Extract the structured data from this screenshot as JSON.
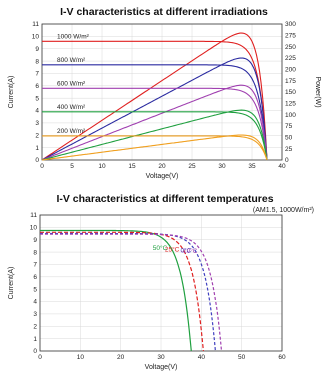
{
  "chart_data": [
    {
      "type": "line",
      "title": "I-V characteristics at different irradiations",
      "xlabel": "Voltage(V)",
      "ylabel": "Current(A)",
      "ylabel_right": "Power(W)",
      "xlim": [
        0,
        40
      ],
      "ylim": [
        0,
        11
      ],
      "ylim_right": [
        0,
        300
      ],
      "x_ticks": [
        0,
        5,
        10,
        15,
        20,
        25,
        30,
        35,
        40
      ],
      "y_ticks": [
        0,
        1,
        2,
        3,
        4,
        5,
        6,
        7,
        8,
        9,
        10,
        11
      ],
      "y_ticks_right": [
        0,
        25,
        50,
        75,
        100,
        125,
        150,
        175,
        200,
        225,
        250,
        275,
        300
      ],
      "grid": true,
      "voc": 37.5,
      "series": [
        {
          "name": "1000 W/m²",
          "isc": 9.6,
          "pmax": 280,
          "vmp": 31,
          "color": "#e02020"
        },
        {
          "name": "800 W/m²",
          "isc": 7.7,
          "pmax": 225,
          "vmp": 31,
          "color": "#2a2aa0"
        },
        {
          "name": "600 W/m²",
          "isc": 5.8,
          "pmax": 165,
          "vmp": 30,
          "color": "#a040b0"
        },
        {
          "name": "400 W/m²",
          "isc": 3.9,
          "pmax": 110,
          "vmp": 30,
          "color": "#20a040"
        },
        {
          "name": "200 W/m²",
          "isc": 1.95,
          "pmax": 55,
          "vmp": 29,
          "color": "#f0a020"
        }
      ]
    },
    {
      "type": "line",
      "title": "I-V characteristics at different temperatures",
      "condition": "(AM1.5, 1000W/m²)",
      "xlabel": "Voltage(V)",
      "ylabel": "Current(A)",
      "xlim": [
        0,
        60
      ],
      "ylim": [
        0,
        11
      ],
      "x_ticks": [
        0,
        10,
        20,
        30,
        40,
        50,
        60
      ],
      "y_ticks": [
        0,
        1,
        2,
        3,
        4,
        5,
        6,
        7,
        8,
        9,
        10,
        11
      ],
      "grid": true,
      "series": [
        {
          "name": "50°C",
          "isc": 9.75,
          "voc": 37.5,
          "color": "#20a040"
        },
        {
          "name": "25°C",
          "isc": 9.6,
          "voc": 40.5,
          "color": "#e02020"
        },
        {
          "name": "0°C",
          "isc": 9.5,
          "voc": 43.5,
          "color": "#4040c0"
        },
        {
          "name": "-10°C",
          "isc": 9.45,
          "voc": 45,
          "color": "#a040b0"
        }
      ]
    }
  ]
}
